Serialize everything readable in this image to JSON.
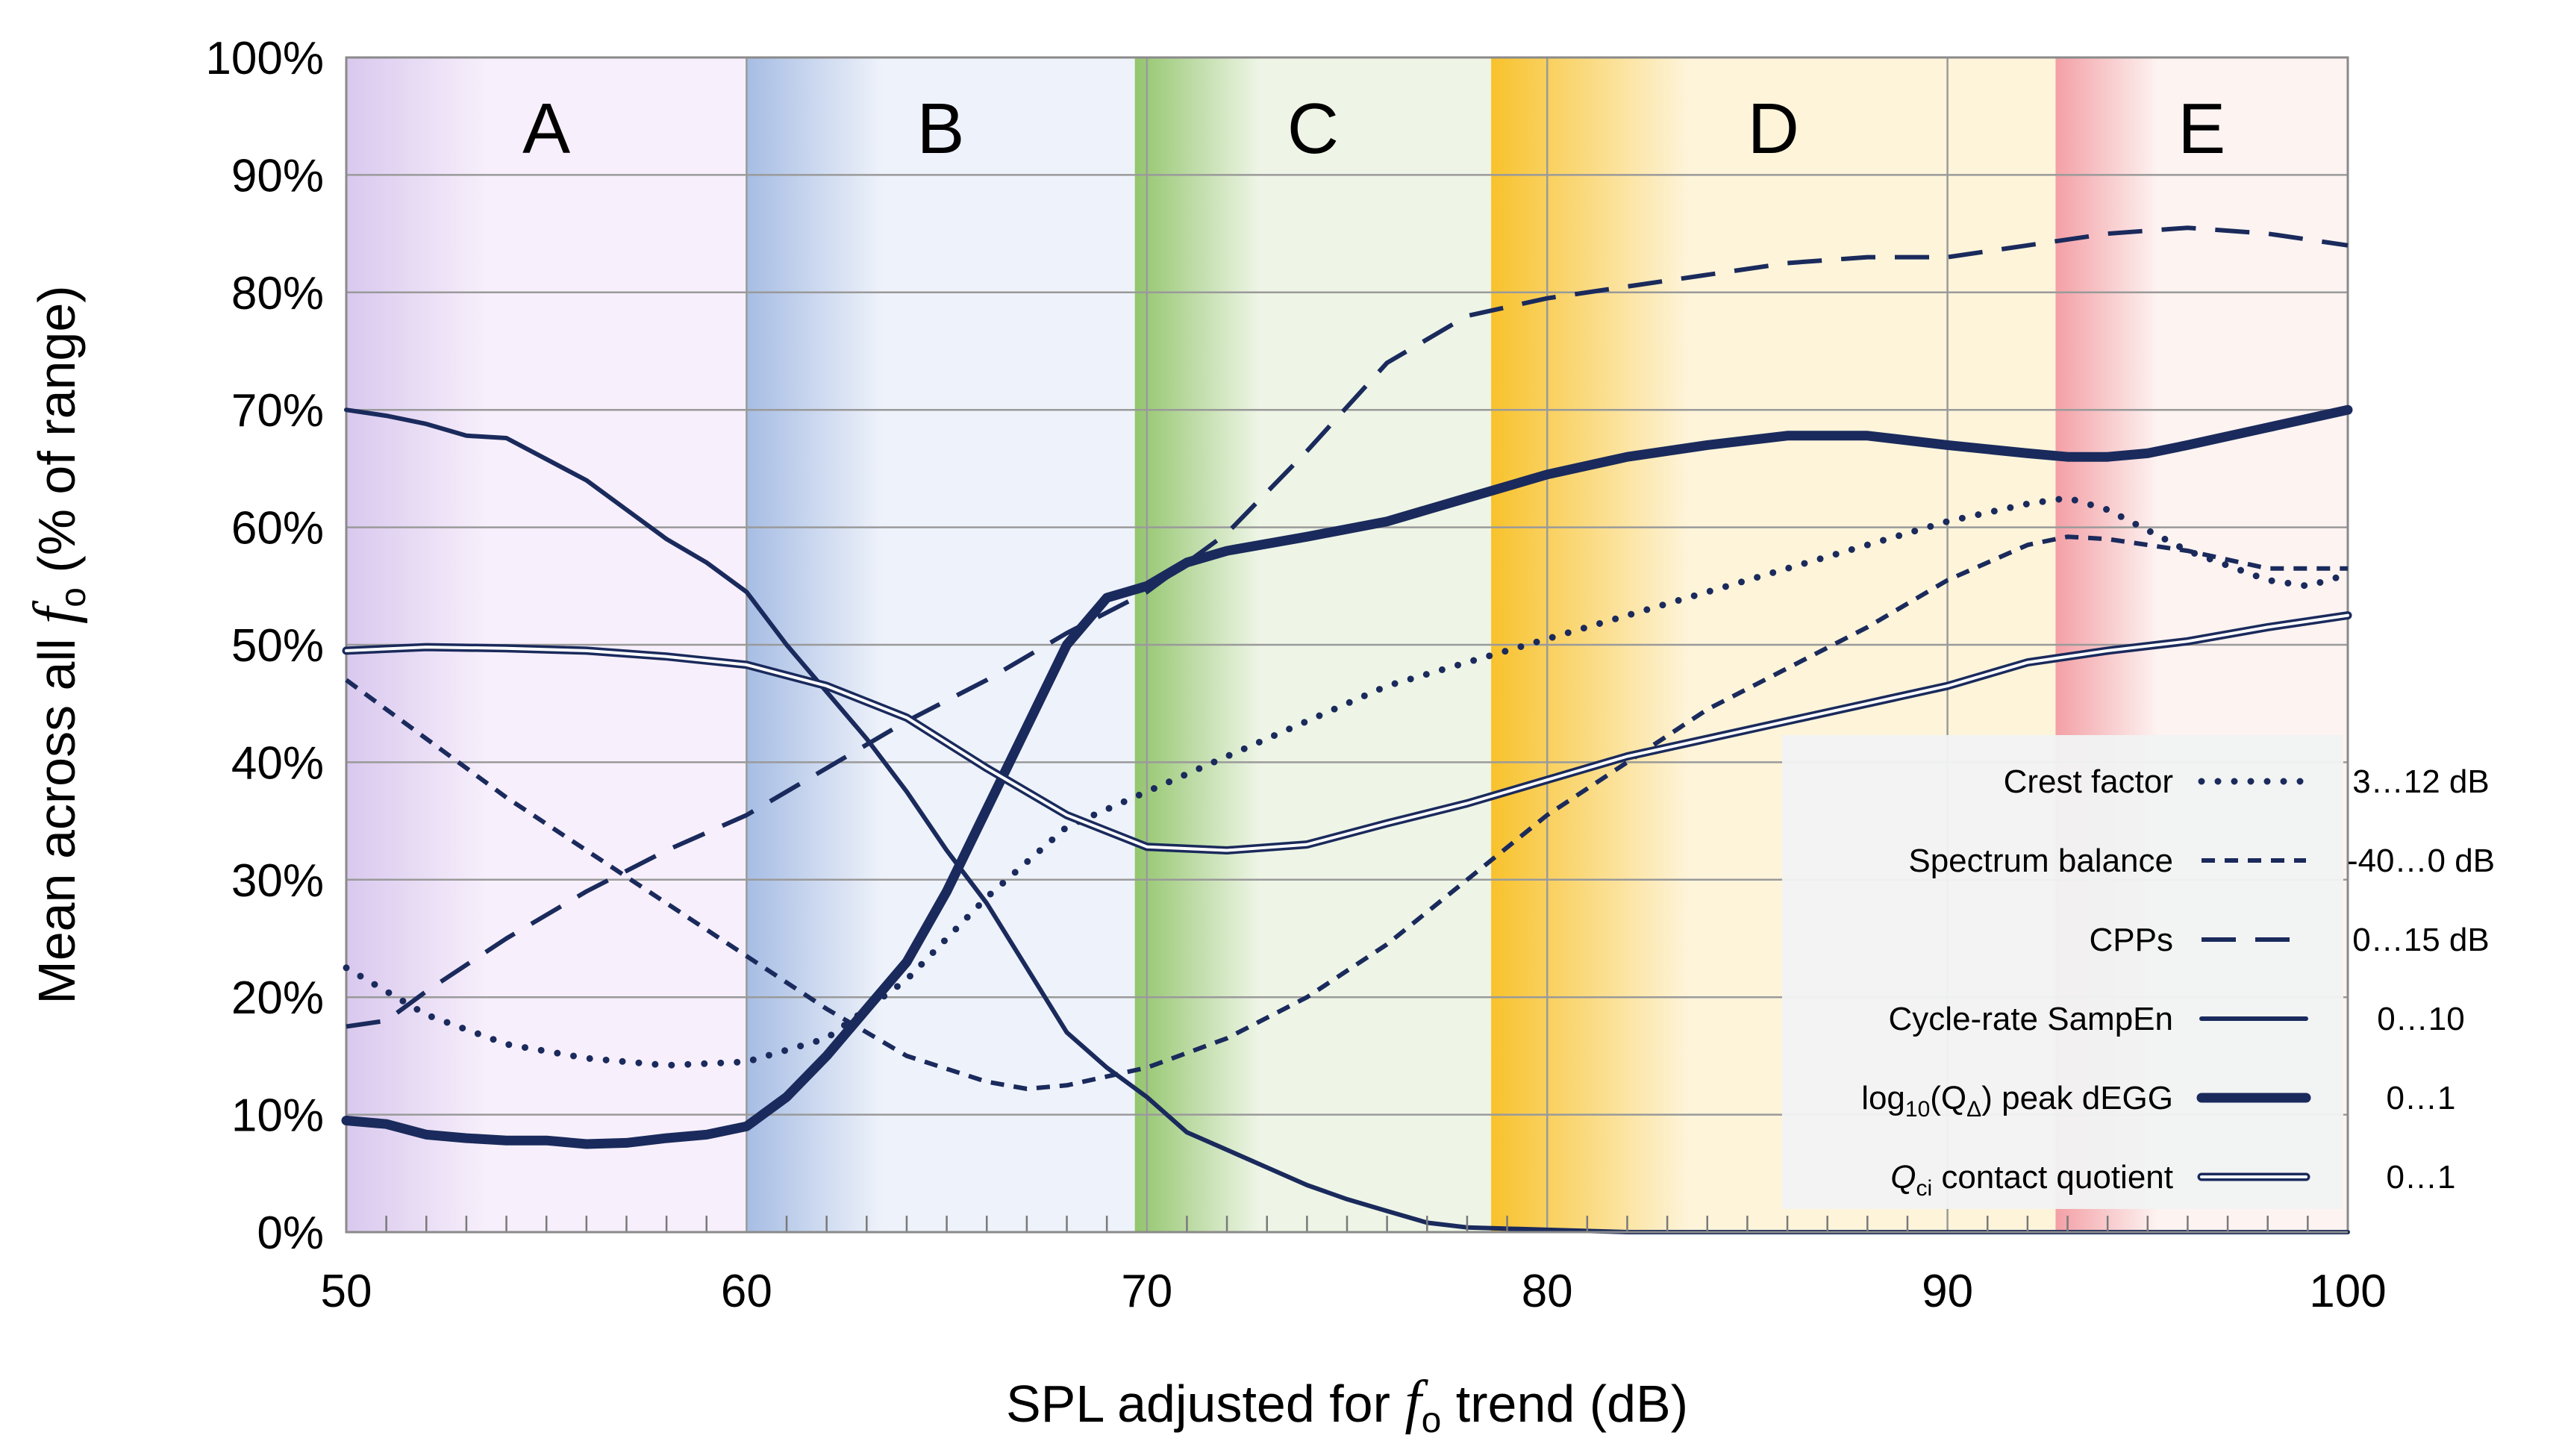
{
  "chart_data": {
    "type": "line",
    "title": "",
    "xlabel": "SPL adjusted for f_o trend (dB)",
    "xlabel_parts": {
      "pre": "SPL adjusted for ",
      "sym": "f",
      "sub": "o",
      "post": " trend (dB)"
    },
    "ylabel": "Mean across all f_o (% of range)",
    "ylabel_parts": {
      "pre": "Mean across all ",
      "sym": "f",
      "sub": "o",
      "post": "(% of range)"
    },
    "xlim": [
      50,
      100
    ],
    "ylim": [
      0,
      100
    ],
    "x_ticks": [
      50,
      60,
      70,
      80,
      90,
      100
    ],
    "x_tick_labels": [
      "50",
      "60",
      "70",
      "80",
      "90",
      "100"
    ],
    "y_ticks": [
      0,
      10,
      20,
      30,
      40,
      50,
      60,
      70,
      80,
      90,
      100
    ],
    "y_tick_labels": [
      "0%",
      "10%",
      "20%",
      "30%",
      "40%",
      "50%",
      "60%",
      "70%",
      "80%",
      "90%",
      "100%"
    ],
    "grid": true,
    "regions": [
      {
        "label": "A",
        "x_start": 50,
        "x_end": 60,
        "color_start": "#d9c8ee",
        "color_end": "#f7effb"
      },
      {
        "label": "B",
        "x_start": 60,
        "x_end": 69.7,
        "color_start": "#a7bde4",
        "color_end": "#eef2fa"
      },
      {
        "label": "C",
        "x_start": 69.7,
        "x_end": 78.6,
        "color_start": "#93c56d",
        "color_end": "#eef5e6"
      },
      {
        "label": "D",
        "x_start": 78.6,
        "x_end": 92.7,
        "color_start": "#f8c22c",
        "color_end": "#fdf4da"
      },
      {
        "label": "E",
        "x_start": 92.7,
        "x_end": 100,
        "color_start": "#f3a0a6",
        "color_end": "#fdf3f1"
      }
    ],
    "line_color": "#1a2a5c",
    "series": [
      {
        "name": "Crest factor",
        "range": "3…12 dB",
        "style": "dotted",
        "x": [
          50,
          52,
          54,
          56,
          58,
          60,
          62,
          64,
          66,
          68,
          70,
          72,
          74,
          76,
          78,
          80,
          82,
          84,
          86,
          88,
          90,
          92,
          93,
          94,
          96,
          98,
          99,
          100
        ],
        "y": [
          22.5,
          18.5,
          16.0,
          14.8,
          14.2,
          14.5,
          16.5,
          21.5,
          28.5,
          34.5,
          37.5,
          40.5,
          43.5,
          46.5,
          48.5,
          50.5,
          52.5,
          54.5,
          56.5,
          58.5,
          60.5,
          62.0,
          62.5,
          61.5,
          58.0,
          55.5,
          55.0,
          56.0
        ]
      },
      {
        "name": "Spectrum balance",
        "range": "-40…0 dB",
        "style": "short-dash",
        "x": [
          50,
          52,
          54,
          56,
          58,
          60,
          62,
          64,
          66,
          67,
          68,
          70,
          72,
          74,
          76,
          78,
          80,
          82,
          84,
          86,
          88,
          90,
          92,
          93,
          94,
          96,
          98,
          100
        ],
        "y": [
          47.0,
          42.0,
          37.0,
          32.5,
          28.0,
          23.5,
          19.0,
          15.0,
          12.8,
          12.2,
          12.5,
          14.0,
          16.5,
          20.0,
          24.5,
          30.0,
          35.5,
          40.0,
          44.5,
          48.0,
          51.5,
          55.5,
          58.5,
          59.2,
          59.0,
          58.0,
          56.5,
          56.5
        ]
      },
      {
        "name": "CPPs",
        "range": "0…15 dB",
        "style": "long-dash",
        "x": [
          50,
          51,
          52,
          54,
          56,
          58,
          60,
          62,
          64,
          66,
          68,
          70,
          72,
          74,
          76,
          78,
          80,
          82,
          84,
          86,
          88,
          90,
          92,
          94,
          96,
          98,
          100
        ],
        "y": [
          17.5,
          18.0,
          20.5,
          25.0,
          29.0,
          32.5,
          35.5,
          39.5,
          43.5,
          47.0,
          51.0,
          54.5,
          59.5,
          66.5,
          74.0,
          78.0,
          79.5,
          80.5,
          81.5,
          82.5,
          83.0,
          83.0,
          84.0,
          85.0,
          85.5,
          85.0,
          84.0
        ]
      },
      {
        "name": "Cycle-rate SampEn",
        "range": "0…10",
        "style": "solid",
        "x": [
          50,
          51,
          52,
          53,
          54,
          55,
          56,
          57,
          58,
          59,
          60,
          61,
          62,
          63,
          64,
          65,
          66,
          67,
          68,
          69,
          70,
          71,
          72,
          73,
          74,
          75,
          76,
          77,
          78,
          80,
          82,
          85,
          90,
          95,
          100
        ],
        "y": [
          70.0,
          69.5,
          68.8,
          67.8,
          67.6,
          65.8,
          64.0,
          61.5,
          59.0,
          57.0,
          54.5,
          50.0,
          46.0,
          42.0,
          37.5,
          32.5,
          28.0,
          22.5,
          17.0,
          14.0,
          11.5,
          8.5,
          7.0,
          5.5,
          4.0,
          2.8,
          1.8,
          0.8,
          0.4,
          0.2,
          0.0,
          0.0,
          0.0,
          0.0,
          0.0
        ]
      },
      {
        "name": "log10(QΔ) peak dEGG",
        "range": "0…1",
        "style": "thick-solid",
        "x": [
          50,
          51,
          52,
          53,
          54,
          55,
          56,
          57,
          58,
          59,
          60,
          61,
          62,
          63,
          64,
          65,
          66,
          67,
          68,
          69,
          70,
          71,
          72,
          74,
          76,
          78,
          80,
          82,
          84,
          86,
          88,
          90,
          92,
          93,
          94,
          95,
          96,
          98,
          100
        ],
        "y": [
          9.5,
          9.2,
          8.3,
          8.0,
          7.8,
          7.8,
          7.5,
          7.6,
          8.0,
          8.3,
          9.0,
          11.5,
          15.0,
          19.0,
          23.0,
          29.0,
          36.0,
          43.0,
          50.0,
          54.0,
          55.0,
          57.0,
          58.0,
          59.2,
          60.5,
          62.5,
          64.5,
          66.0,
          67.0,
          67.8,
          67.8,
          67.0,
          66.3,
          66.0,
          66.0,
          66.3,
          67.0,
          68.5,
          70.0
        ]
      },
      {
        "name": "Qci contact quotient",
        "range": "0…1",
        "style": "double",
        "x": [
          50,
          52,
          54,
          56,
          58,
          60,
          62,
          64,
          66,
          68,
          70,
          72,
          74,
          76,
          78,
          80,
          82,
          84,
          86,
          88,
          90,
          92,
          94,
          96,
          98,
          100
        ],
        "y": [
          49.5,
          49.8,
          49.7,
          49.5,
          49.0,
          48.3,
          46.5,
          43.8,
          39.5,
          35.5,
          32.8,
          32.5,
          33.0,
          34.8,
          36.5,
          38.5,
          40.5,
          42.0,
          43.5,
          45.0,
          46.5,
          48.5,
          49.5,
          50.3,
          51.5,
          52.5
        ]
      }
    ],
    "legend": {
      "position": "right",
      "entries": [
        {
          "label": "Crest factor",
          "range": "3…12 dB",
          "style": "dotted"
        },
        {
          "label": "Spectrum balance",
          "range": "-40…0 dB",
          "style": "short-dash"
        },
        {
          "label": "CPPs",
          "range": "0…15 dB",
          "style": "long-dash"
        },
        {
          "label": "Cycle-rate SampEn",
          "range": "0…10",
          "style": "solid"
        },
        {
          "label": "log10(QΔ) peak dEGG",
          "range": "0…1",
          "style": "thick-solid",
          "parts": {
            "pre": "log",
            "sub1": "10",
            "mid": "(Q",
            "sub2": "Δ",
            "post": ") peak dEGG"
          }
        },
        {
          "label": "Qci contact quotient",
          "range": "0…1",
          "style": "double",
          "parts": {
            "sym": "Q",
            "sub": "ci",
            "post": "  contact quotient"
          }
        }
      ]
    }
  }
}
